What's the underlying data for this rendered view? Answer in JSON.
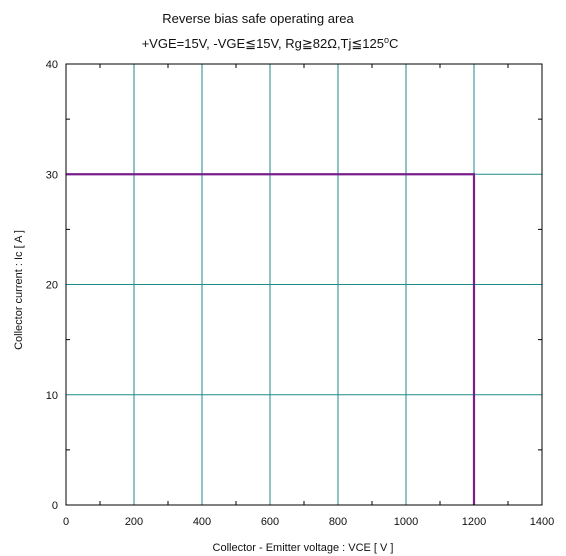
{
  "chart_data": {
    "type": "line",
    "title": "Reverse bias safe operating area",
    "subtitle": {
      "parts": [
        {
          "text": "+VGE=15V, -VGE",
          "style": "normal"
        },
        {
          "text": "≦",
          "style": "normal"
        },
        {
          "text": "15V, Rg",
          "style": "normal"
        },
        {
          "text": "≧",
          "style": "normal"
        },
        {
          "text": "82Ω,Tj",
          "style": "normal"
        },
        {
          "text": "≦",
          "style": "normal"
        },
        {
          "text": "125",
          "style": "normal"
        },
        {
          "text": "o",
          "style": "superscript"
        },
        {
          "text": "C",
          "style": "normal"
        }
      ]
    },
    "xlabel": "Collector - Emitter voltage  :  VCE  [ V ]",
    "ylabel": "Collector current  :  Ic  [ A ]",
    "xlim": [
      0,
      1400
    ],
    "ylim": [
      0,
      40
    ],
    "xticks": [
      0,
      200,
      400,
      600,
      800,
      1000,
      1200,
      1400
    ],
    "yticks": [
      0,
      10,
      20,
      30,
      40
    ],
    "grid": true,
    "colors": {
      "grid": "#1f8a8a",
      "series": "#7a1e8c",
      "frame": "#000000"
    },
    "series": [
      {
        "x": [
          0,
          1200,
          1200
        ],
        "y": [
          30,
          30,
          0
        ]
      }
    ]
  }
}
